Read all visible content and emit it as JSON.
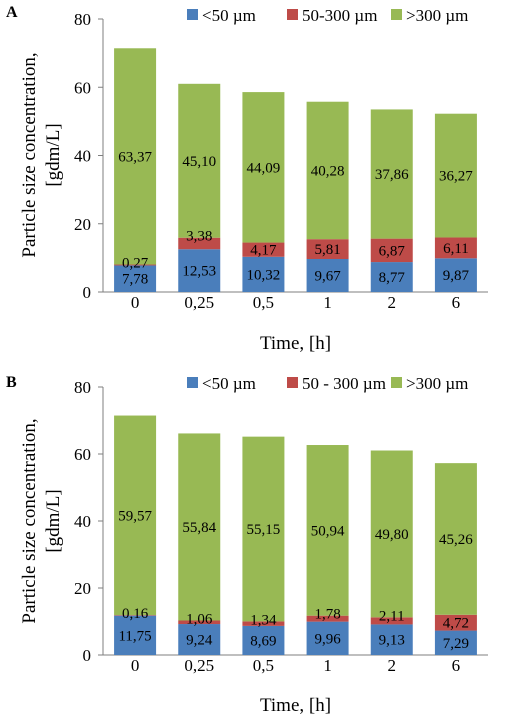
{
  "chart_data": [
    {
      "panel": "A",
      "type": "bar",
      "stacked": true,
      "categories": [
        "0",
        "0,25",
        "0,5",
        "1",
        "2",
        "6"
      ],
      "series": [
        {
          "name": "<50 µm",
          "color": "#4a7ebb",
          "values": [
            7.78,
            12.53,
            10.32,
            9.67,
            8.77,
            9.87
          ],
          "labels": [
            "7,78",
            "12,53",
            "10,32",
            "9,67",
            "8,77",
            "9,87"
          ]
        },
        {
          "name": "50-300 µm",
          "color": "#be4b48",
          "values": [
            0.27,
            3.38,
            4.17,
            5.81,
            6.87,
            6.11
          ],
          "labels": [
            "0,27",
            "3,38",
            "4,17",
            "5,81",
            "6,87",
            "6,11"
          ]
        },
        {
          "name": ">300 µm",
          "color": "#98b954",
          "values": [
            63.37,
            45.1,
            44.09,
            40.28,
            37.86,
            36.27
          ],
          "labels": [
            "63,37",
            "45,10",
            "44,09",
            "40,28",
            "37,86",
            "36,27"
          ]
        }
      ],
      "yticks": [
        "0",
        "20",
        "40",
        "60",
        "80"
      ],
      "ylim": [
        0,
        80
      ],
      "xlabel": "Time, [h]",
      "ylabel": "Particle size concentration, [gdm/L]",
      "legend_position": "top",
      "grid": false
    },
    {
      "panel": "B",
      "type": "bar",
      "stacked": true,
      "categories": [
        "0",
        "0,25",
        "0,5",
        "1",
        "2",
        "6"
      ],
      "series": [
        {
          "name": "<50 µm",
          "color": "#4a7ebb",
          "values": [
            11.75,
            9.24,
            8.69,
            9.96,
            9.13,
            7.29
          ],
          "labels": [
            "11,75",
            "9,24",
            "8,69",
            "9,96",
            "9,13",
            "7,29"
          ]
        },
        {
          "name": "50 - 300 µm",
          "color": "#be4b48",
          "values": [
            0.16,
            1.06,
            1.34,
            1.78,
            2.11,
            4.72
          ],
          "labels": [
            "0,16",
            "1,06",
            "1,34",
            "1,78",
            "2,11",
            "4,72"
          ]
        },
        {
          "name": ">300 µm",
          "color": "#98b954",
          "values": [
            59.57,
            55.84,
            55.15,
            50.94,
            49.8,
            45.26
          ],
          "labels": [
            "59,57",
            "55,84",
            "55,15",
            "50,94",
            "49,80",
            "45,26"
          ]
        }
      ],
      "yticks": [
        "0",
        "20",
        "40",
        "60",
        "80"
      ],
      "ylim": [
        0,
        80
      ],
      "xlabel": "Time, [h]",
      "ylabel": "Particle size concentration, [gdm/L]",
      "legend_position": "top",
      "grid": false
    }
  ]
}
